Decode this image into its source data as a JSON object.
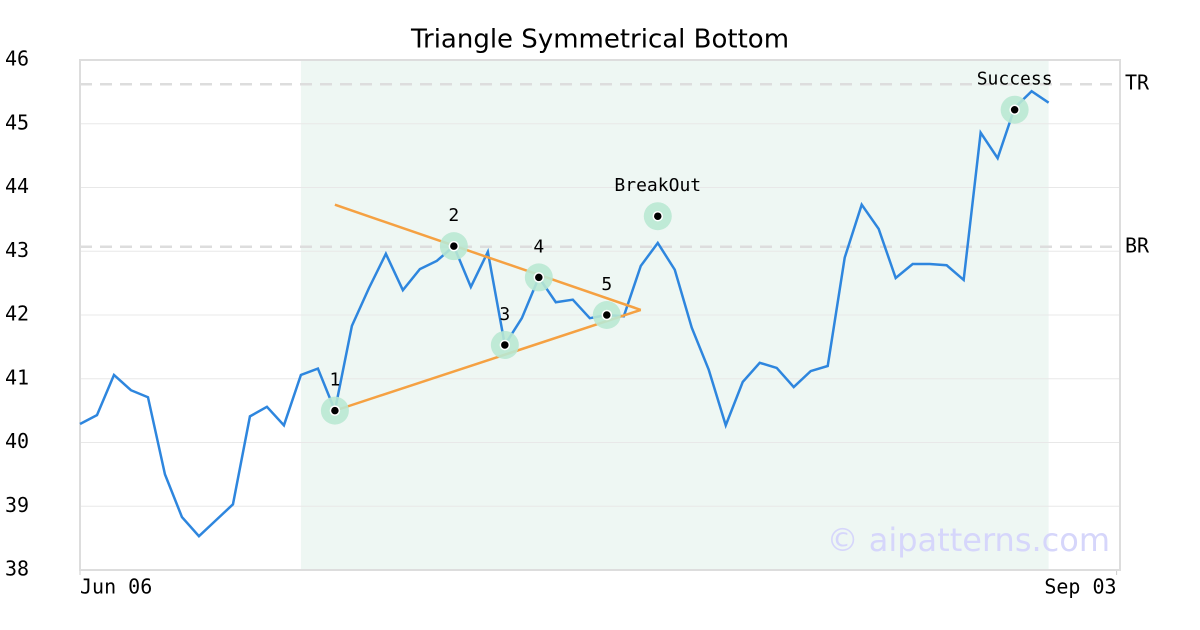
{
  "chart_data": {
    "type": "line",
    "title": "Triangle Symmetrical Bottom",
    "series": [
      {
        "color": "#2e86de",
        "x": [
          0,
          1,
          2,
          3,
          4,
          5,
          6,
          7,
          8,
          9,
          10,
          11,
          12,
          13,
          14,
          15,
          16,
          17,
          18,
          19,
          20,
          21,
          22,
          23,
          24,
          25,
          26,
          27,
          28,
          29,
          30,
          31,
          32,
          33,
          34,
          35,
          36,
          37,
          38,
          39,
          40,
          41,
          42,
          43,
          44,
          45,
          46,
          47,
          48,
          49,
          50,
          51,
          52,
          53,
          54,
          55,
          56,
          57
        ],
        "values": [
          40.29,
          40.43,
          41.06,
          40.82,
          40.71,
          39.5,
          38.83,
          38.53,
          38.78,
          39.03,
          40.41,
          40.56,
          40.27,
          41.06,
          41.16,
          40.5,
          41.83,
          42.42,
          42.96,
          42.39,
          42.72,
          42.85,
          43.08,
          42.44,
          42.99,
          41.53,
          41.95,
          42.59,
          42.2,
          42.24,
          41.95,
          42.0,
          41.98,
          42.77,
          43.13,
          42.71,
          41.8,
          41.14,
          40.27,
          40.95,
          41.25,
          41.17,
          40.87,
          41.12,
          41.2,
          42.9,
          43.73,
          43.35,
          42.58,
          42.8,
          42.8,
          42.78,
          42.55,
          44.86,
          44.46,
          45.25,
          45.51,
          45.33
        ]
      }
    ],
    "xlim": [
      0,
      61.2
    ],
    "xticks": [
      {
        "value": 0,
        "label": "Jun 06"
      },
      {
        "value": 61,
        "label": "Sep 03"
      }
    ],
    "ylim": [
      38,
      46
    ],
    "yticks": [
      38,
      39,
      40,
      41,
      42,
      43,
      44,
      45,
      46
    ],
    "grid": true,
    "shade": {
      "x": [
        13,
        57
      ],
      "color": "#eef7f3"
    },
    "levels": [
      {
        "label": "TR",
        "value": 45.62
      },
      {
        "label": "BR",
        "value": 43.07
      }
    ],
    "triangle": {
      "color": "#f5a142",
      "lines": [
        {
          "x": [
            15,
            33
          ],
          "y": [
            43.73,
            42.08
          ]
        },
        {
          "x": [
            15,
            33
          ],
          "y": [
            40.5,
            42.08
          ]
        }
      ]
    },
    "points": [
      {
        "label": "1",
        "x": 15,
        "y": 40.5
      },
      {
        "label": "2",
        "x": 22,
        "y": 43.08
      },
      {
        "label": "3",
        "x": 25,
        "y": 41.53
      },
      {
        "label": "4",
        "x": 27,
        "y": 42.59
      },
      {
        "label": "5",
        "x": 31,
        "y": 42.0
      },
      {
        "label": "BreakOut",
        "x": 34,
        "y": 43.55
      },
      {
        "label": "Success",
        "x": 55,
        "y": 45.22
      }
    ],
    "watermark": "© aipatterns.com"
  }
}
